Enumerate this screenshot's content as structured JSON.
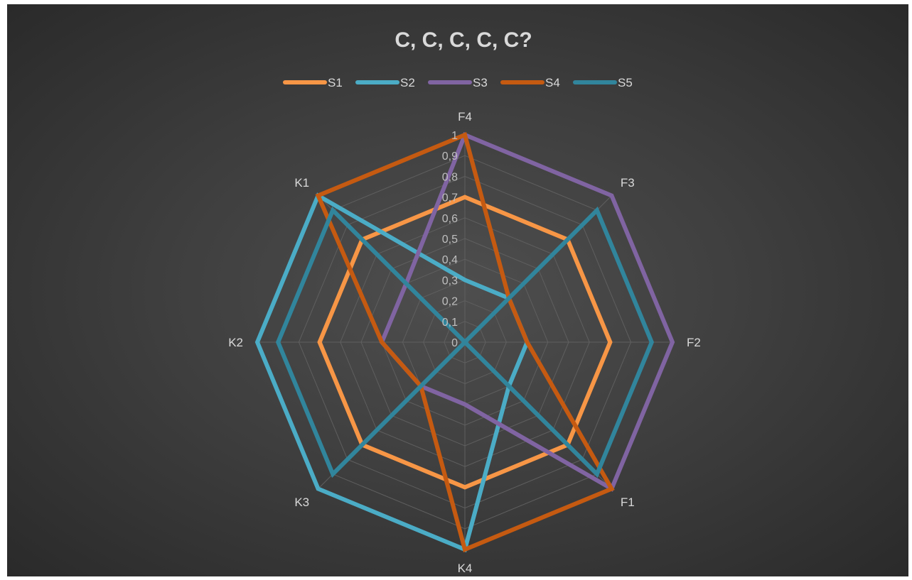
{
  "chart_data": {
    "type": "radar",
    "title": "C, C, C, C, C?",
    "categories": [
      "F4",
      "F3",
      "F2",
      "F1",
      "K4",
      "K3",
      "K2",
      "K1"
    ],
    "tick_labels": [
      "0",
      "0,1",
      "0,2",
      "0,3",
      "0,4",
      "0,5",
      "0,6",
      "0,7",
      "0,8",
      "0,9",
      "1"
    ],
    "rlim": [
      0,
      1
    ],
    "grid": true,
    "legend_position": "top",
    "series": [
      {
        "name": "S1",
        "color": "#f79646",
        "values": [
          0.7,
          0.7,
          0.7,
          0.7,
          0.7,
          0.7,
          0.7,
          0.7
        ]
      },
      {
        "name": "S2",
        "color": "#4bacc6",
        "values": [
          0.3,
          0.3,
          0.3,
          0.3,
          1.0,
          1.0,
          1.0,
          1.0
        ]
      },
      {
        "name": "S3",
        "color": "#8064a2",
        "values": [
          1.0,
          1.0,
          1.0,
          1.0,
          0.3,
          0.3,
          0.4,
          0.4
        ]
      },
      {
        "name": "S4",
        "color": "#c55a11",
        "values": [
          1.0,
          0.3,
          0.3,
          1.0,
          1.0,
          0.3,
          0.4,
          1.0
        ]
      },
      {
        "name": "S5",
        "color": "#31859c",
        "values": [
          0.0,
          0.9,
          0.9,
          0.9,
          0.0,
          0.9,
          0.9,
          0.9
        ]
      }
    ]
  }
}
